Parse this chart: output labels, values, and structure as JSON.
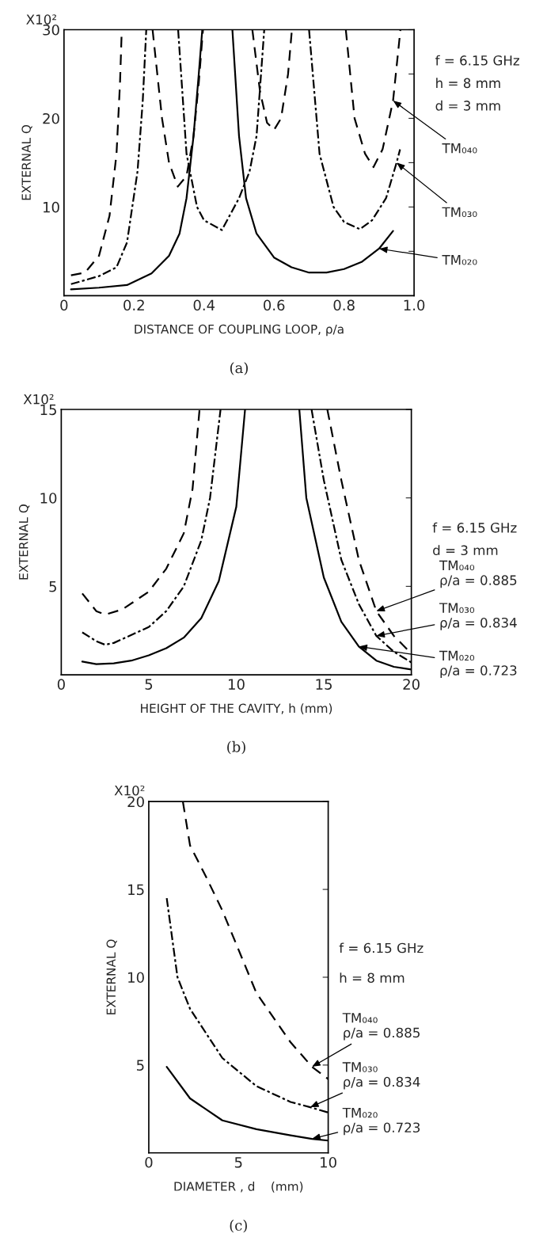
{
  "chart_data": [
    {
      "type": "line",
      "xlabel": "DISTANCE OF COUPLING LOOP, ρ/a",
      "ylabel": "EXTERNAL Q",
      "xlim": [
        0,
        1.0
      ],
      "ylim": [
        0,
        30
      ],
      "xticks": [
        0,
        0.2,
        0.4,
        0.6,
        0.8,
        {
          "value": 1.0,
          "label": "1.0"
        }
      ],
      "yticks": [
        {
          "value": 5,
          "label": null
        },
        10,
        {
          "value": 15,
          "label": null
        },
        20,
        {
          "value": 25,
          "label": null
        },
        30
      ],
      "grid": false,
      "legend": false,
      "marker": "none",
      "series": [
        {
          "color": "#000000",
          "line_style": "dashed",
          "x": [
            0.02,
            0.06,
            0.1,
            0.13,
            0.15,
            0.16,
            0.165,
            null,
            0.253,
            0.28,
            0.3,
            0.325,
            0.35,
            0.37,
            0.385,
            0.397,
            null,
            0.538,
            0.56,
            0.58,
            0.6,
            0.62,
            0.64,
            0.651,
            null,
            0.805,
            0.83,
            0.86,
            0.884,
            0.91,
            0.94,
            0.961
          ],
          "values": [
            2.3,
            2.6,
            4.5,
            9,
            16,
            24,
            30,
            null,
            30,
            20,
            15,
            12.3,
            13.5,
            18,
            24,
            30,
            null,
            30,
            23,
            19.5,
            18.7,
            20,
            25,
            30,
            null,
            30,
            20,
            16,
            14.5,
            16.5,
            22,
            30
          ]
        },
        {
          "color": "#000000",
          "line_style": "dashdot",
          "x": [
            0.02,
            0.1,
            0.15,
            0.18,
            0.21,
            0.225,
            0.235,
            null,
            0.326,
            0.35,
            0.38,
            0.4,
            0.451,
            0.5,
            0.53,
            0.55,
            0.572,
            null,
            0.7,
            0.73,
            0.77,
            0.8,
            0.845,
            0.88,
            0.92,
            0.95,
            0.96
          ],
          "values": [
            1.3,
            2.2,
            3.2,
            6,
            14,
            22,
            30,
            null,
            30,
            16,
            10,
            8.5,
            7.4,
            11,
            14,
            18,
            30,
            null,
            30,
            16,
            10,
            8.3,
            7.5,
            8.5,
            11,
            15,
            16.5
          ]
        },
        {
          "color": "#000000",
          "line_style": "solid",
          "x": [
            0.02,
            0.1,
            0.18,
            0.25,
            0.3,
            0.33,
            0.35,
            0.37,
            0.385,
            0.395,
            null,
            0.481,
            0.5,
            0.52,
            0.55,
            0.6,
            0.65,
            0.7,
            0.75,
            0.8,
            0.85,
            0.9,
            0.94
          ],
          "values": [
            0.7,
            0.9,
            1.2,
            2.5,
            4.5,
            7,
            11,
            18,
            25,
            30,
            null,
            30,
            18,
            11,
            7,
            4.3,
            3.2,
            2.6,
            2.6,
            3.0,
            3.8,
            5.3,
            7.3
          ]
        }
      ],
      "annotations": [
        "X10²",
        "f = 6.15 GHz",
        "h = 8 mm",
        "d = 3 mm",
        {
          "text": "TM₀₄₀",
          "x": 0.94,
          "y": 22
        },
        {
          "text": "TM₀₃₀",
          "x": 0.95,
          "y": 15
        },
        {
          "text": "TM₀₂₀",
          "x": 0.9,
          "y": 5.3
        },
        "(a)"
      ]
    },
    {
      "type": "line",
      "xlabel": "HEIGHT OF THE CAVITY, h (mm)",
      "ylabel": "EXTERNAL Q",
      "xlim": [
        0,
        20
      ],
      "ylim": [
        0,
        15
      ],
      "xticks": [
        0,
        5,
        10,
        15,
        20
      ],
      "yticks": [
        5,
        10,
        15
      ],
      "grid": false,
      "legend": false,
      "marker": "none",
      "series": [
        {
          "color": "#000000",
          "line_style": "dashed",
          "x": [
            1.2,
            2,
            2.5,
            3.5,
            5,
            6,
            7,
            7.5,
            7.9,
            null,
            15.2,
            16,
            17,
            18,
            19,
            20
          ],
          "values": [
            4.6,
            3.6,
            3.4,
            3.7,
            4.7,
            6,
            8,
            10.5,
            15,
            null,
            15,
            11,
            6.5,
            3.6,
            2.2,
            1.2
          ]
        },
        {
          "color": "#000000",
          "line_style": "dashdot",
          "x": [
            1.2,
            2,
            2.5,
            3,
            5,
            6,
            7,
            8,
            8.5,
            9.1,
            null,
            14.3,
            15,
            16,
            17,
            18,
            19,
            20
          ],
          "values": [
            2.4,
            1.9,
            1.7,
            1.8,
            2.7,
            3.6,
            5,
            7.6,
            10,
            15,
            null,
            15,
            11,
            6.5,
            4,
            2.2,
            1.3,
            0.7
          ]
        },
        {
          "color": "#000000",
          "line_style": "solid",
          "x": [
            1.2,
            2,
            3,
            4,
            5,
            6,
            7,
            8,
            9,
            10,
            10.5,
            null,
            13.6,
            14,
            15,
            16,
            17,
            18,
            19,
            20
          ],
          "values": [
            0.75,
            0.6,
            0.65,
            0.8,
            1.1,
            1.5,
            2.1,
            3.2,
            5.3,
            9.5,
            15,
            null,
            15,
            10,
            5.5,
            3,
            1.6,
            0.8,
            0.45,
            0.3
          ]
        }
      ],
      "annotations": [
        "X10²",
        "f = 6.15 GHz",
        "d = 3 mm",
        {
          "text": "TM₀₄₀\nρ/a = 0.885",
          "x": 18,
          "y": 3.6
        },
        {
          "text": "TM₀₃₀\nρ/a = 0.834",
          "x": 18,
          "y": 2.2
        },
        {
          "text": "TM₀₂₀\nρ/a = 0.723",
          "x": 17,
          "y": 1.6
        },
        "(b)"
      ]
    },
    {
      "type": "line",
      "xlabel": "DIAMETER , d    (mm)",
      "ylabel": "EXTERNAL Q",
      "xlim": [
        0,
        10
      ],
      "ylim": [
        0,
        20
      ],
      "xticks": [
        0,
        5,
        10
      ],
      "yticks": [
        5,
        10,
        15,
        20
      ],
      "grid": false,
      "legend": false,
      "marker": "none",
      "series": [
        {
          "color": "#000000",
          "line_style": "dashed",
          "x": [
            1.9,
            2.3,
            3.2,
            4.1,
            6.0,
            7.9,
            9.1,
            10
          ],
          "values": [
            20,
            17.5,
            15.7,
            13.8,
            9.1,
            6.3,
            4.9,
            4.2
          ]
        },
        {
          "color": "#000000",
          "line_style": "dashdot",
          "x": [
            1.0,
            1.6,
            2.3,
            4.1,
            6.0,
            7.9,
            9.0,
            10
          ],
          "values": [
            14.5,
            10,
            8.2,
            5.4,
            3.8,
            2.9,
            2.6,
            2.3
          ]
        },
        {
          "color": "#000000",
          "line_style": "solid",
          "x": [
            1.0,
            2.3,
            4.1,
            6.0,
            7.9,
            9.1,
            10
          ],
          "values": [
            4.9,
            3.1,
            1.85,
            1.35,
            1.0,
            0.8,
            0.7
          ]
        }
      ],
      "annotations": [
        "X10²",
        "f = 6.15 GHz",
        "h = 8 mm",
        {
          "text": "TM₀₄₀\nρ/a = 0.885",
          "x": 9.1,
          "y": 4.9
        },
        {
          "text": "TM₀₃₀\nρ/a = 0.834",
          "x": 9.0,
          "y": 2.6
        },
        {
          "text": "TM₀₂₀\nρ/a = 0.723",
          "x": 9.1,
          "y": 0.8
        },
        "(c)"
      ]
    }
  ]
}
